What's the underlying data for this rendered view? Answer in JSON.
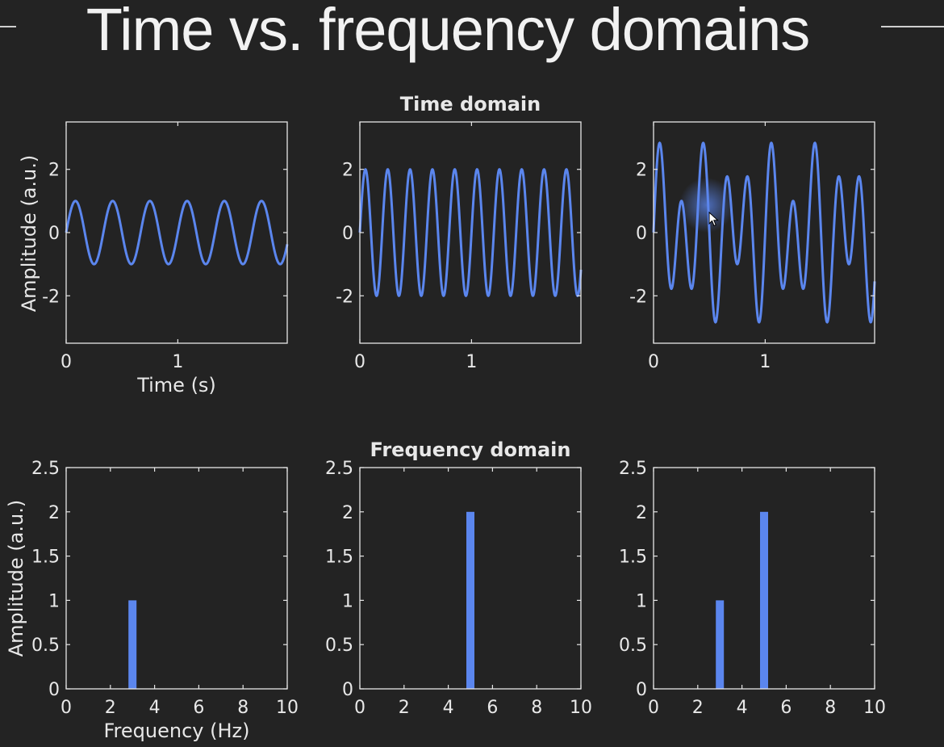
{
  "slide": {
    "title": "Time vs. frequency domains"
  },
  "colors": {
    "background": "#232323",
    "series": "#5b86ee",
    "axes": "#e6e6e6",
    "text": "#e8e8e8"
  },
  "time_section": {
    "title": "Time domain",
    "xlabel": "Time (s)",
    "ylabel": "Amplitude (a.u.)"
  },
  "freq_section": {
    "title": "Frequency domain",
    "xlabel": "Frequency (Hz)",
    "ylabel": "Amplitude (a.u.)"
  },
  "chart_data": [
    {
      "id": "time-1",
      "type": "line",
      "xlim": [
        0,
        1.98
      ],
      "ylim": [
        -3.5,
        3.5
      ],
      "xticks": [
        0,
        1
      ],
      "yticks": [
        -2,
        0,
        2
      ],
      "series": [
        {
          "components": [
            {
              "amplitude": 1,
              "frequency_hz": 3
            }
          ]
        }
      ]
    },
    {
      "id": "time-2",
      "type": "line",
      "xlim": [
        0,
        1.98
      ],
      "ylim": [
        -3.5,
        3.5
      ],
      "xticks": [
        0,
        1
      ],
      "yticks": [
        -2,
        0,
        2
      ],
      "series": [
        {
          "components": [
            {
              "amplitude": 2,
              "frequency_hz": 5
            }
          ]
        }
      ]
    },
    {
      "id": "time-3",
      "type": "line",
      "xlim": [
        0,
        1.98
      ],
      "ylim": [
        -3.5,
        3.5
      ],
      "xticks": [
        0,
        1
      ],
      "yticks": [
        -2,
        0,
        2
      ],
      "series": [
        {
          "components": [
            {
              "amplitude": 1,
              "frequency_hz": 3
            },
            {
              "amplitude": 2,
              "frequency_hz": 5
            }
          ]
        }
      ]
    },
    {
      "id": "freq-1",
      "type": "bar",
      "xlim": [
        0,
        10
      ],
      "ylim": [
        0,
        2.5
      ],
      "xticks": [
        0,
        2,
        4,
        6,
        8,
        10
      ],
      "yticks": [
        0,
        0.5,
        1,
        1.5,
        2,
        2.5
      ],
      "x": [
        3
      ],
      "values": [
        1
      ]
    },
    {
      "id": "freq-2",
      "type": "bar",
      "xlim": [
        0,
        10
      ],
      "ylim": [
        0,
        2.5
      ],
      "xticks": [
        0,
        2,
        4,
        6,
        8,
        10
      ],
      "yticks": [
        0,
        0.5,
        1,
        1.5,
        2,
        2.5
      ],
      "x": [
        5
      ],
      "values": [
        2
      ]
    },
    {
      "id": "freq-3",
      "type": "bar",
      "xlim": [
        0,
        10
      ],
      "ylim": [
        0,
        2.5
      ],
      "xticks": [
        0,
        2,
        4,
        6,
        8,
        10
      ],
      "yticks": [
        0,
        0.5,
        1,
        1.5,
        2,
        2.5
      ],
      "x": [
        3,
        5
      ],
      "values": [
        1,
        2
      ]
    }
  ]
}
